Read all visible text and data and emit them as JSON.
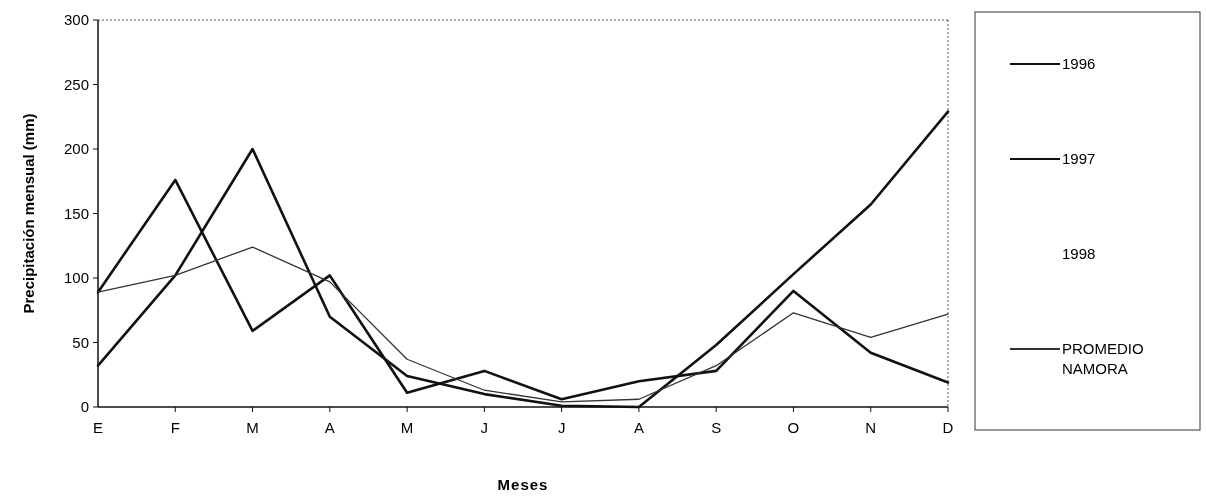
{
  "chart_data": {
    "type": "line",
    "xlabel": "Meses",
    "ylabel": "Precipitación mensual (mm)",
    "categories": [
      "E",
      "F",
      "M",
      "A",
      "M",
      "J",
      "J",
      "A",
      "S",
      "O",
      "N",
      "D"
    ],
    "ylim": [
      0,
      300
    ],
    "yticks": [
      0,
      50,
      100,
      150,
      200,
      250,
      300
    ],
    "legend": "right",
    "grid": false,
    "marker": "none",
    "series": [
      {
        "name": "1996",
        "color": "#111111",
        "values": [
          89,
          176,
          59,
          102,
          11,
          28,
          6,
          20,
          28,
          90,
          42,
          19
        ]
      },
      {
        "name": "1997",
        "color": "#111111",
        "values": [
          32,
          102,
          200,
          70,
          24,
          10,
          1,
          0,
          48,
          103,
          157,
          229
        ]
      },
      {
        "name": "1998",
        "values": [
          null,
          null,
          null,
          null,
          null,
          null,
          null,
          null,
          null,
          null,
          null,
          null
        ]
      },
      {
        "name": "PROMEDIO NAMORA",
        "color": "#333333",
        "values": [
          89,
          102,
          124,
          97,
          37,
          13,
          4,
          6,
          32,
          73,
          54,
          72
        ]
      }
    ]
  }
}
